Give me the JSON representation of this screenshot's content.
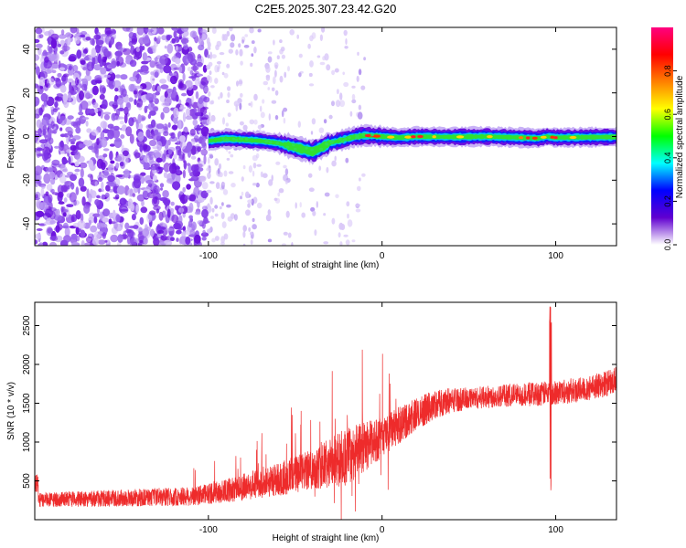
{
  "title": "C2E5.2025.307.23.42.G20",
  "chart_data": [
    {
      "type": "heatmap",
      "xlabel": "Height of straight line (km)",
      "ylabel": "Frequency (Hz)",
      "xlim": [
        -200,
        135
      ],
      "ylim": [
        -50,
        50
      ],
      "x_ticks": [
        -100,
        0,
        100
      ],
      "x_tick_labels": [
        "-100",
        "0",
        "100"
      ],
      "y_ticks": [
        -40,
        -20,
        0,
        20,
        40
      ],
      "y_tick_labels": [
        "-40",
        "-20",
        "0",
        "20",
        "40"
      ],
      "colorbar": {
        "label": "Normalized spectral amplitude",
        "range": [
          0,
          1
        ],
        "ticks": [
          0,
          0.2,
          0.4,
          0.6,
          0.8
        ],
        "tick_labels": [
          "0.0",
          "0.2",
          "0.4",
          "0.6",
          "0.8"
        ],
        "palette": [
          "#ffffff",
          "#6000d0",
          "#0000ff",
          "#00ffff",
          "#00ff00",
          "#ffff00",
          "#ff8000",
          "#ff0000",
          "#ff0080"
        ]
      },
      "trace": {
        "x": [
          -100,
          -90,
          -80,
          -70,
          -60,
          -50,
          -45,
          -40,
          -35,
          -30,
          -25,
          -20,
          -15,
          -10,
          -5,
          0,
          10,
          20,
          40,
          60,
          80,
          90,
          95,
          100,
          120,
          135
        ],
        "freq": [
          -2,
          -1,
          -1.5,
          -2,
          -3,
          -5,
          -6,
          -7,
          -5,
          -3,
          -2,
          -1,
          0,
          0.5,
          0.3,
          0,
          -0.5,
          0,
          -0.2,
          0,
          -0.5,
          -0.8,
          0,
          -0.5,
          -0.3,
          -0.2
        ]
      },
      "grid": false,
      "legend": "none"
    },
    {
      "type": "line",
      "xlabel": "Height of straight line (km)",
      "ylabel": "SNR (10 * v/v)",
      "xlim": [
        -200,
        135
      ],
      "ylim": [
        0,
        2800
      ],
      "x_ticks": [
        -100,
        0,
        100
      ],
      "x_tick_labels": [
        "-100",
        "0",
        "100"
      ],
      "y_ticks": [
        500,
        1000,
        1500,
        2000,
        2500
      ],
      "y_tick_labels": [
        "500",
        "1000",
        "1500",
        "2000",
        "2500"
      ],
      "color": "#ee2b2b",
      "envelope": {
        "x": [
          -200,
          -150,
          -110,
          -100,
          -90,
          -80,
          -70,
          -60,
          -50,
          -40,
          -30,
          -20,
          -10,
          0,
          10,
          20,
          30,
          40,
          50,
          60,
          70,
          80,
          90,
          95,
          100,
          110,
          120,
          130,
          135
        ],
        "snr": [
          250,
          280,
          300,
          330,
          370,
          420,
          470,
          520,
          580,
          650,
          730,
          820,
          940,
          1060,
          1220,
          1360,
          1480,
          1540,
          1560,
          1580,
          1600,
          1610,
          1620,
          1630,
          1640,
          1660,
          1700,
          1760,
          1800
        ]
      },
      "noise_amplitude": {
        "x": [
          -200,
          -100,
          -40,
          -20,
          0,
          50,
          135
        ],
        "snr": [
          90,
          130,
          260,
          380,
          260,
          140,
          170
        ]
      },
      "events": [
        {
          "x": 97,
          "snr_max": 2760,
          "snr_min": 320
        }
      ],
      "grid": false,
      "legend": "none"
    }
  ]
}
